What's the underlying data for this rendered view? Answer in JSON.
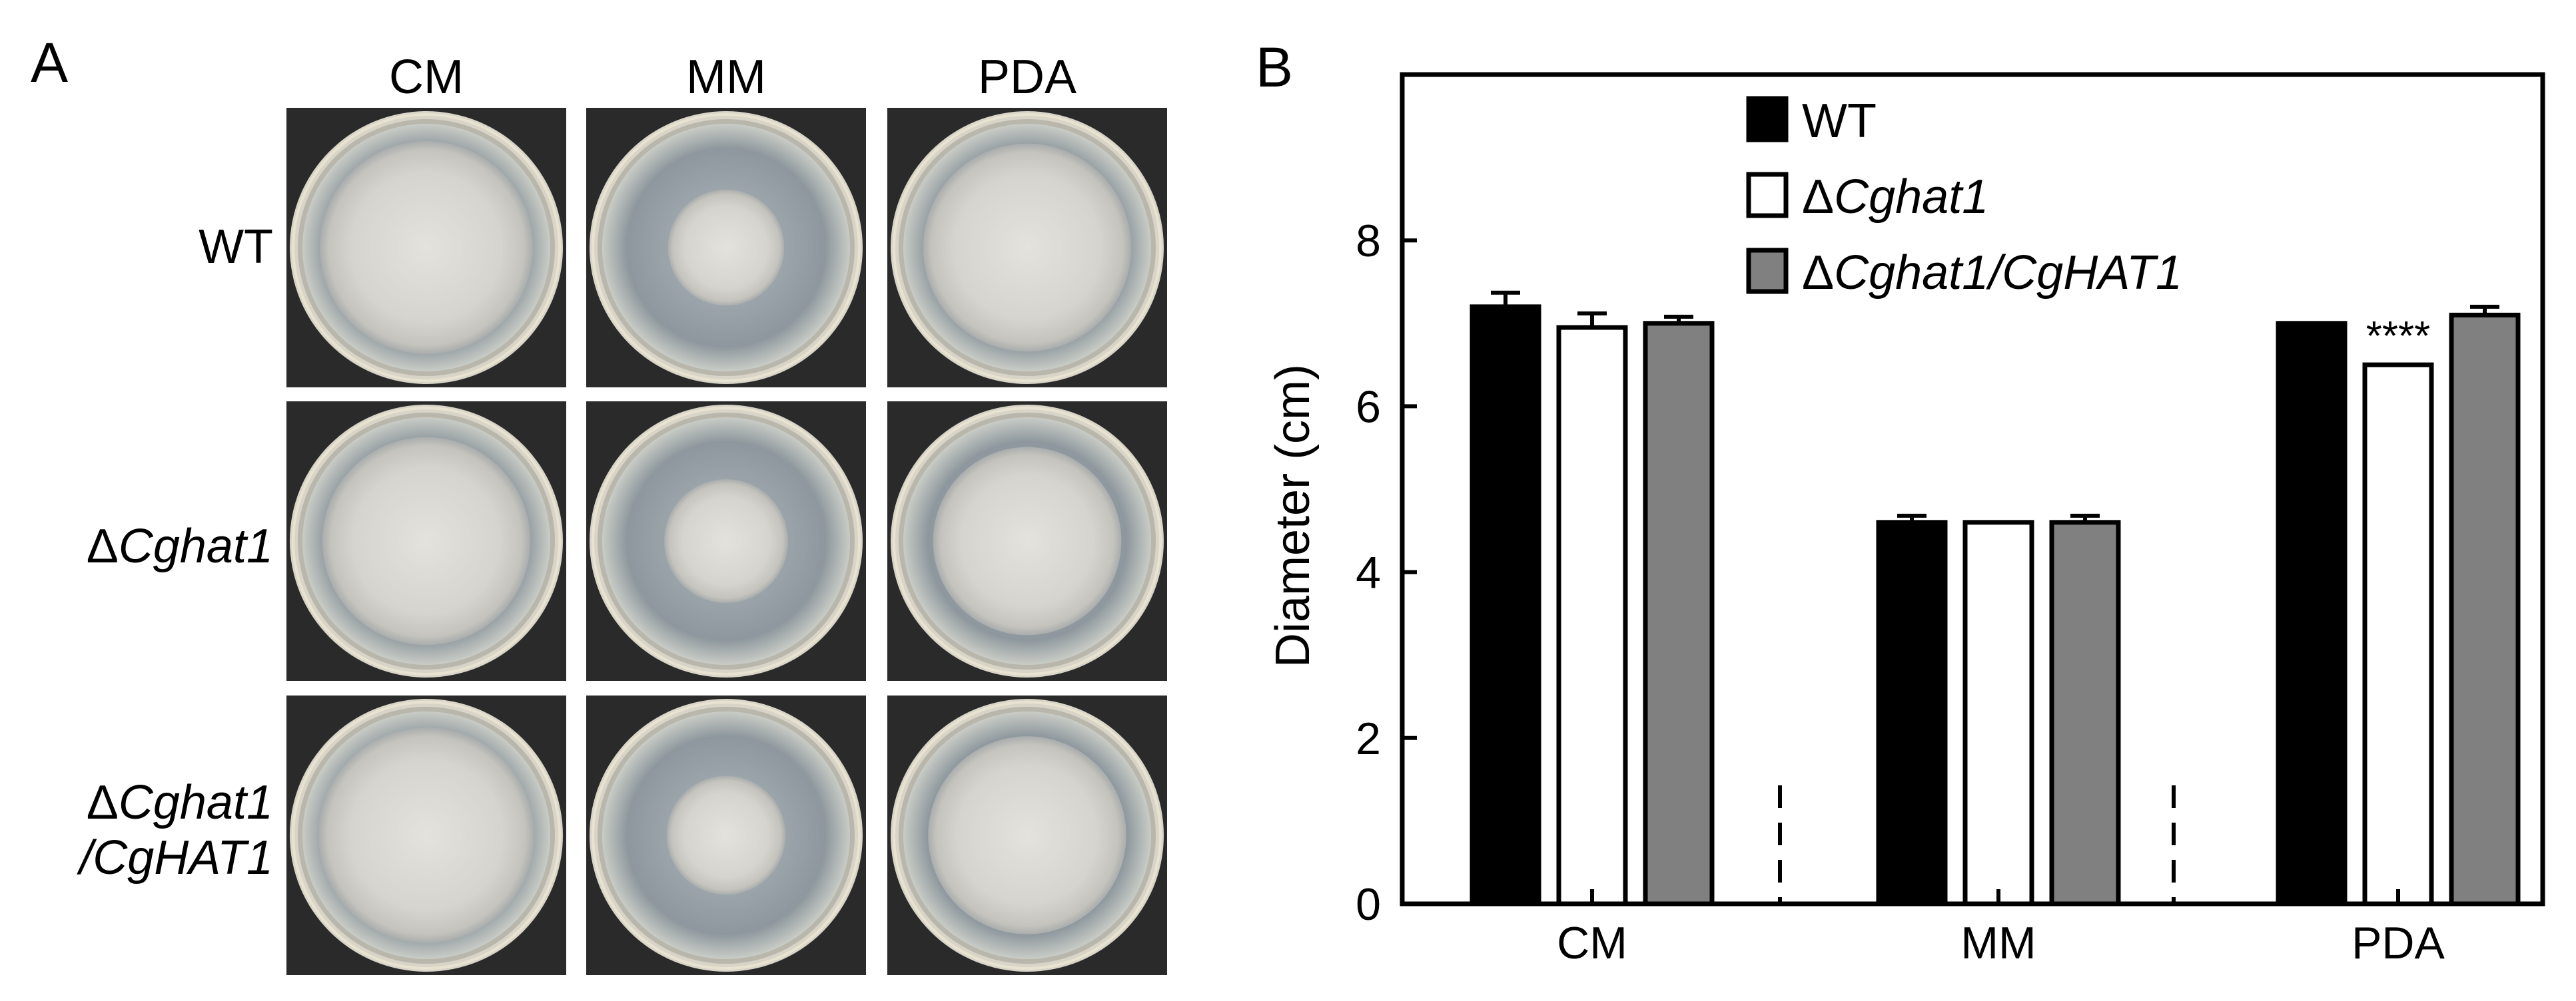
{
  "panel_a": {
    "letter": "A",
    "columns": [
      "CM",
      "MM",
      "PDA"
    ],
    "rows": [
      {
        "prefix": "",
        "italic": "",
        "plain": "WT",
        "line2_prefix": "",
        "line2_italic": ""
      },
      {
        "prefix": "Δ",
        "italic": "Cghat1",
        "plain": "",
        "line2_prefix": "",
        "line2_italic": ""
      },
      {
        "prefix": "Δ",
        "italic": "Cghat1",
        "plain": "",
        "line2_prefix": "/",
        "line2_italic": "CgHAT1"
      }
    ],
    "colony_fraction": [
      [
        0.86,
        0.47,
        0.84
      ],
      [
        0.84,
        0.5,
        0.76
      ],
      [
        0.87,
        0.48,
        0.8
      ]
    ]
  },
  "panel_b": {
    "letter": "B"
  },
  "chart_data": {
    "type": "bar",
    "title": "",
    "xlabel": "",
    "ylabel": "Diameter (cm)",
    "ylim": [
      0,
      10
    ],
    "yticks": [
      0,
      2,
      4,
      6,
      8
    ],
    "grid": false,
    "legend_position": "top-center",
    "categories": [
      "CM",
      "MM",
      "PDA"
    ],
    "series": [
      {
        "name": "WT",
        "prefix": "",
        "italic": "",
        "plain": "WT",
        "color": "#000000",
        "values": [
          7.2,
          4.6,
          7.0
        ],
        "errors": [
          0.17,
          0.08,
          0.0
        ]
      },
      {
        "name": "ΔCghat1",
        "prefix": "Δ",
        "italic": "Cghat1",
        "plain": "",
        "color": "#ffffff",
        "values": [
          6.95,
          4.6,
          6.5
        ],
        "errors": [
          0.17,
          0.0,
          0.0
        ]
      },
      {
        "name": "ΔCghat1/CgHAT1",
        "prefix": "Δ",
        "italic": "Cghat1/CgHAT1",
        "plain": "",
        "color": "#808080",
        "values": [
          7.0,
          4.6,
          7.1
        ],
        "errors": [
          0.08,
          0.08,
          0.1
        ]
      }
    ],
    "annotations": [
      {
        "category": "PDA",
        "series_index": 1,
        "text": "****"
      }
    ]
  }
}
